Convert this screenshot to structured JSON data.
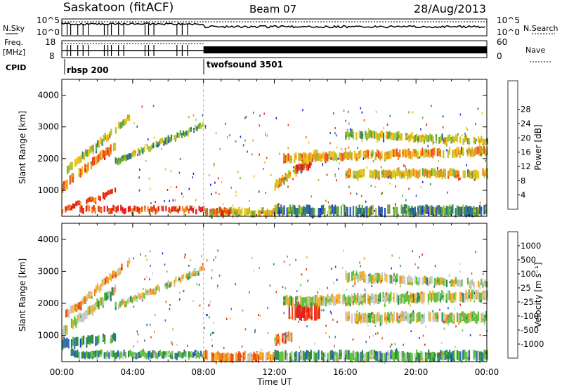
{
  "header": {
    "station": "Saskatoon (fitACF)",
    "beam": "Beam 07",
    "date": "28/Aug/2013"
  },
  "aux": {
    "nsky_label": "N.Sky",
    "nsearch_label": "N.Search",
    "freq_label": "Freq.",
    "freq_unit": "[MHz]",
    "nave_label": "Nave",
    "cpid_label": "CPID",
    "nsky_ticks": [
      "10^5",
      "10^0"
    ],
    "nsearch_ticks": [
      "10^5",
      "10^0"
    ],
    "freq_ticks": [
      "18",
      "8"
    ],
    "nave_ticks": [
      "60",
      "0"
    ],
    "cpid_segments": [
      {
        "name": "rbsp 200",
        "start_hour": 0,
        "end_hour": 8
      },
      {
        "name": "twofsound 3501",
        "start_hour": 8,
        "end_hour": 24
      }
    ]
  },
  "chart_data": [
    {
      "type": "heatmap",
      "name_key": "power",
      "x_range": [
        0,
        24
      ],
      "ylim": [
        180,
        4500
      ],
      "ylabel": "Slant Range [km]",
      "yticks": [
        "1000",
        "2000",
        "3000",
        "4000"
      ],
      "colorbar": {
        "label": "Power [dB]",
        "ticks": [
          "4",
          "8",
          "12",
          "16",
          "20",
          "24",
          "28"
        ],
        "colors": [
          "#1a1aff",
          "#2a4dbf",
          "#2e7d6e",
          "#5fa83c",
          "#b6c22b",
          "#f0c21d",
          "#f08a1b",
          "#ee4a1a",
          "#e61c1c"
        ]
      },
      "bands": [
        {
          "t": [
            0.2,
            3.8
          ],
          "r0": [
            1500,
            3200
          ],
          "r1": [
            1750,
            3400
          ],
          "v": 0.45
        },
        {
          "t": [
            0.0,
            3.0
          ],
          "r0": [
            950,
            2300
          ],
          "r1": [
            1250,
            2550
          ],
          "v": 0.7
        },
        {
          "t": [
            0.0,
            3.0
          ],
          "r0": [
            300,
            900
          ],
          "r1": [
            450,
            1050
          ],
          "v": 0.85
        },
        {
          "t": [
            3.0,
            8.0
          ],
          "r0": [
            1800,
            3000
          ],
          "r1": [
            2000,
            3150
          ],
          "v": 0.4
        },
        {
          "t": [
            1.0,
            8.0
          ],
          "r0": [
            300,
            300
          ],
          "r1": [
            500,
            460
          ],
          "v": 0.9
        },
        {
          "t": [
            8.0,
            12.0
          ],
          "r0": [
            200,
            200
          ],
          "r1": [
            450,
            400
          ],
          "v": 0.55
        },
        {
          "t": [
            8.3,
            9.5
          ],
          "r0": [
            250,
            250
          ],
          "r1": [
            420,
            420
          ],
          "v": 0.95
        },
        {
          "t": [
            12.0,
            14.5
          ],
          "r0": [
            1000,
            2100
          ],
          "r1": [
            1250,
            2350
          ],
          "v": 0.6
        },
        {
          "t": [
            13.2,
            14.0
          ],
          "r0": [
            1650,
            1650
          ],
          "r1": [
            1850,
            1850
          ],
          "v": 0.95
        },
        {
          "t": [
            12.5,
            24.0
          ],
          "r0": [
            1900,
            2100
          ],
          "r1": [
            2150,
            2350
          ],
          "v": 0.65
        },
        {
          "t": [
            16.0,
            24.0
          ],
          "r0": [
            1400,
            1400
          ],
          "r1": [
            1650,
            1650
          ],
          "v": 0.6
        },
        {
          "t": [
            16.0,
            24.0
          ],
          "r0": [
            2650,
            2450
          ],
          "r1": [
            2900,
            2650
          ],
          "v": 0.5
        },
        {
          "t": [
            12.0,
            24.0
          ],
          "r0": [
            200,
            200
          ],
          "r1": [
            500,
            500
          ],
          "v": 0.3
        }
      ]
    },
    {
      "type": "heatmap",
      "name_key": "velocity",
      "x_range": [
        0,
        24
      ],
      "ylim": [
        180,
        4500
      ],
      "ylabel": "Slant Range [km]",
      "yticks": [
        "1000",
        "2000",
        "3000",
        "4000"
      ],
      "colorbar": {
        "label": "Velocity [m s⁻¹]",
        "ticks": [
          "1000",
          "500",
          "100",
          "25",
          "-25",
          "-100",
          "-500",
          "-1000"
        ],
        "colors": [
          "#2046c8",
          "#2e6fa8",
          "#2f8a4a",
          "#5ec23a",
          "#c8c8c8",
          "#f2b12b",
          "#f0821c",
          "#ee4a1a",
          "#e61c1c"
        ]
      },
      "bands": [
        {
          "t": [
            0.2,
            3.8
          ],
          "r0": [
            1500,
            3200
          ],
          "r1": [
            1750,
            3400
          ],
          "v": 0.65
        },
        {
          "t": [
            0.0,
            3.0
          ],
          "r0": [
            950,
            2300
          ],
          "r1": [
            1250,
            2550
          ],
          "v": 0.5
        },
        {
          "t": [
            0.0,
            3.0
          ],
          "r0": [
            600,
            800
          ],
          "r1": [
            900,
            1050
          ],
          "v": 0.25
        },
        {
          "t": [
            3.0,
            8.0
          ],
          "r0": [
            1800,
            3000
          ],
          "r1": [
            2000,
            3150
          ],
          "v": 0.5
        },
        {
          "t": [
            0.5,
            8.0
          ],
          "r0": [
            300,
            300
          ],
          "r1": [
            520,
            480
          ],
          "v": 0.3
        },
        {
          "t": [
            8.0,
            12.0
          ],
          "r0": [
            200,
            200
          ],
          "r1": [
            500,
            450
          ],
          "v": 0.7
        },
        {
          "t": [
            12.0,
            13.0
          ],
          "r0": [
            700,
            800
          ],
          "r1": [
            1000,
            1100
          ],
          "v": 0.65
        },
        {
          "t": [
            12.8,
            14.6
          ],
          "r0": [
            1500,
            1500
          ],
          "r1": [
            2000,
            2050
          ],
          "v": 0.92
        },
        {
          "t": [
            12.5,
            24.0
          ],
          "r0": [
            1900,
            2100
          ],
          "r1": [
            2200,
            2400
          ],
          "v": 0.5
        },
        {
          "t": [
            16.0,
            24.0
          ],
          "r0": [
            1400,
            1400
          ],
          "r1": [
            1700,
            1700
          ],
          "v": 0.5
        },
        {
          "t": [
            16.0,
            24.0
          ],
          "r0": [
            2700,
            2500
          ],
          "r1": [
            3000,
            2700
          ],
          "v": 0.5
        },
        {
          "t": [
            12.0,
            24.0
          ],
          "r0": [
            200,
            200
          ],
          "r1": [
            500,
            500
          ],
          "v": 0.35
        }
      ]
    }
  ],
  "xaxis": {
    "ticks": [
      "00:00",
      "04:00",
      "08:00",
      "12:00",
      "16:00",
      "20:00",
      "00:00"
    ],
    "label": "Time UT"
  }
}
